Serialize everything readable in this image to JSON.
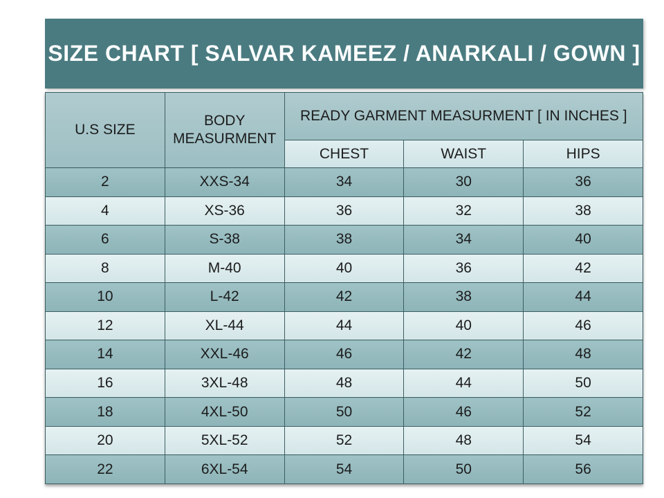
{
  "banner": {
    "title": "SIZE CHART [ SALVAR KAMEEZ / ANARKALI / GOWN ]"
  },
  "chart_data": {
    "type": "table",
    "title": "SIZE CHART [ SALVAR KAMEEZ / ANARKALI / GOWN ]",
    "columns": [
      "U.S SIZE",
      "BODY MEASURMENT",
      "CHEST",
      "WAIST",
      "HIPS"
    ],
    "group_header": {
      "label": "READY GARMENT MEASURMENT [ IN INCHES ]",
      "spans": [
        "CHEST",
        "WAIST",
        "HIPS"
      ]
    },
    "rows": [
      [
        "2",
        "XXS-34",
        "34",
        "30",
        "36"
      ],
      [
        "4",
        "XS-36",
        "36",
        "32",
        "38"
      ],
      [
        "6",
        "S-38",
        "38",
        "34",
        "40"
      ],
      [
        "8",
        "M-40",
        "40",
        "36",
        "42"
      ],
      [
        "10",
        "L-42",
        "42",
        "38",
        "44"
      ],
      [
        "12",
        "XL-44",
        "44",
        "40",
        "46"
      ],
      [
        "14",
        "XXL-46",
        "46",
        "42",
        "48"
      ],
      [
        "16",
        "3XL-48",
        "48",
        "44",
        "50"
      ],
      [
        "18",
        "4XL-50",
        "50",
        "46",
        "52"
      ],
      [
        "20",
        "5XL-52",
        "52",
        "48",
        "54"
      ],
      [
        "22",
        "6XL-54",
        "54",
        "50",
        "56"
      ]
    ],
    "layout_hints": {
      "striped_rows": true,
      "stripe_order": "first-row-dark"
    }
  },
  "colors": {
    "banner_background": "#4a7b81",
    "banner_text": "#fbfdfd",
    "header_cell": "#a6c5c9",
    "subheader_cell": "#d8e9eb",
    "row_dark": "#93babe",
    "row_light": "#dcebec",
    "border": "#3c5d61",
    "table_text": "#1c1c1c",
    "page_background": "#ffffff"
  }
}
